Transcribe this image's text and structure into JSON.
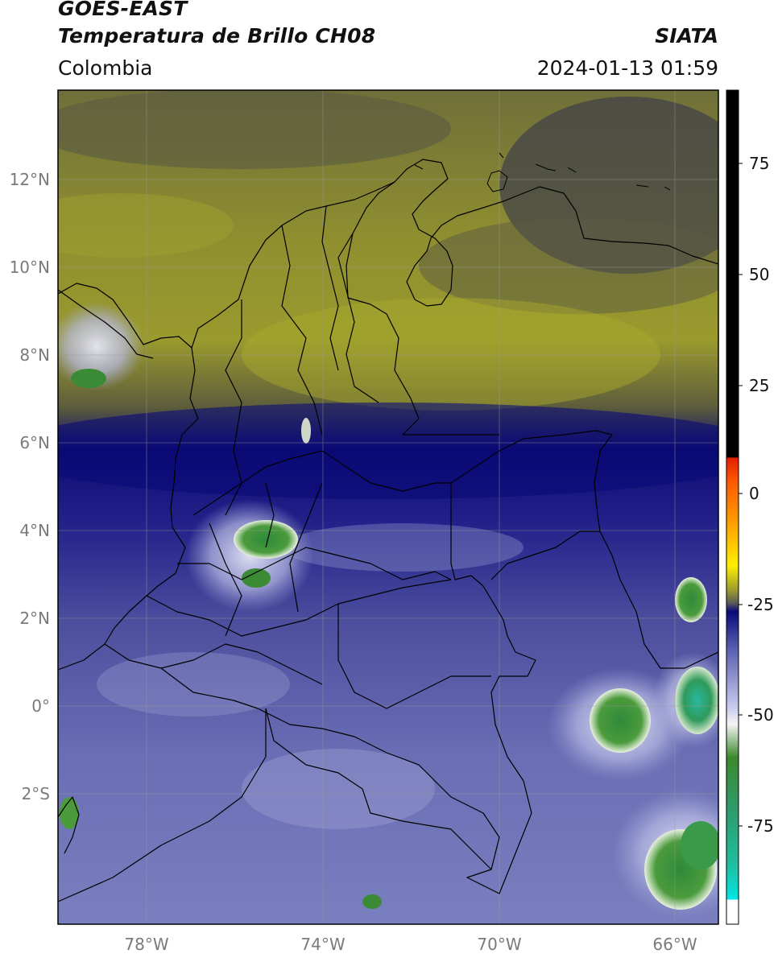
{
  "header": {
    "satellite": "GOES-EAST",
    "product": "Temperatura de Brillo CH08",
    "region": "Colombia",
    "brand": "SIATA",
    "datetime": "2024-01-13 01:59"
  },
  "map": {
    "lon_ticks": [
      "78°W",
      "74°W",
      "70°W",
      "66°W"
    ],
    "lat_ticks": [
      "12°N",
      "10°N",
      "8°N",
      "6°N",
      "4°N",
      "2°N",
      "0°",
      "2°S"
    ],
    "lon_range": [
      -80,
      -65
    ],
    "lat_range": [
      -5,
      14
    ]
  },
  "colorbar": {
    "ticks": [
      "75",
      "50",
      "25",
      "0",
      "-25",
      "-50",
      "-75"
    ],
    "range": [
      -95,
      90
    ],
    "colors": {
      "black": "#000000",
      "red": "#e61e00",
      "orange": "#ff8c00",
      "yellow": "#ffee00",
      "olive": "#9a9a2e",
      "gray": "#5a5a5a",
      "navy": "#0a0a7a",
      "lavender": "#b8bce6",
      "white": "#f4f4f4",
      "green": "#2f8a2f",
      "teal": "#1fbfa0",
      "cyan": "#00e6e6"
    }
  }
}
